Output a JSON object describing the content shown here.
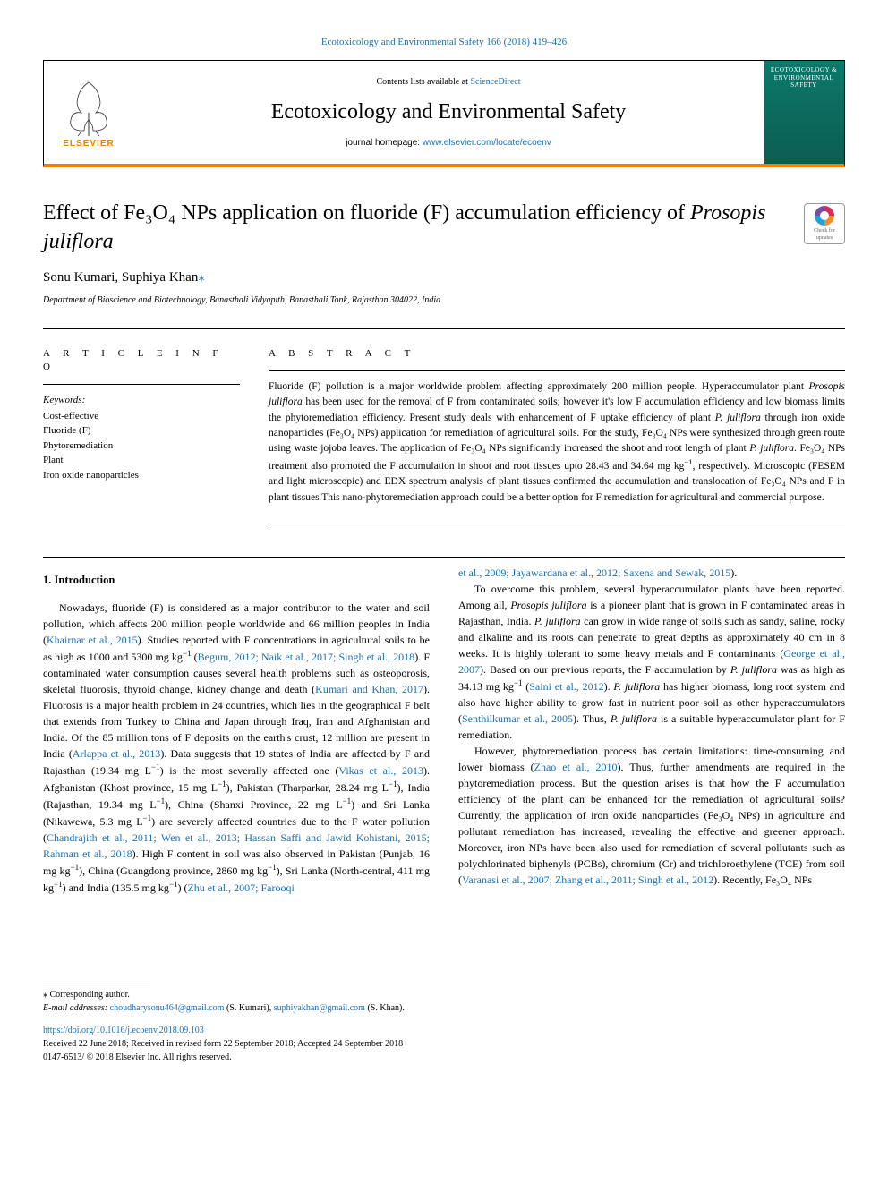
{
  "journal_ref": {
    "text": "Ecotoxicology and Environmental Safety 166 (2018) 419–426",
    "link_text": "Ecotoxicology and Environmental Safety 166 (2018) 419–426"
  },
  "header": {
    "contents_prefix": "Contents lists available at ",
    "contents_link": "ScienceDirect",
    "journal_title": "Ecotoxicology and Environmental Safety",
    "homepage_prefix": "journal homepage: ",
    "homepage_link": "www.elsevier.com/locate/ecoenv",
    "publisher": "ELSEVIER",
    "cover_text": "ECOTOXICOLOGY & ENVIRONMENTAL SAFETY"
  },
  "check_updates": {
    "line1": "Check for",
    "line2": "updates"
  },
  "article": {
    "title_html": "Effect of Fe₃O₄ NPs application on fluoride (F) accumulation efficiency of <em>Prosopis juliflora</em>",
    "authors": "Sonu Kumari, Suphiya Khan",
    "corr_symbol": "⁎",
    "affiliation": "Department of Bioscience and Biotechnology, Banasthali Vidyapith, Banasthali Tonk, Rajasthan 304022, India"
  },
  "article_info": {
    "label": "A R T I C L E  I N F O",
    "keywords_label": "Keywords:",
    "keywords": [
      "Cost-effective",
      "Fluoride (F)",
      "Phytoremediation",
      "Plant",
      "Iron oxide nanoparticles"
    ]
  },
  "abstract": {
    "label": "A B S T R A C T",
    "text_html": "Fluoride (F) pollution is a major worldwide problem affecting approximately 200 million people. Hyperaccumulator plant <em>Prosopis juliflora</em> has been used for the removal of F from contaminated soils; however it's low F accumulation efficiency and low biomass limits the phytoremediation efficiency. Present study deals with enhancement of F uptake efficiency of plant <em>P. juliflora</em> through iron oxide nanoparticles (Fe₃O₄ NPs) application for remediation of agricultural soils. For the study, Fe₃O₄ NPs were synthesized through green route using waste jojoba leaves. The application of Fe₃O₄ NPs significantly increased the shoot and root length of plant <em>P. juliflora</em>. Fe₃O₄ NPs treatment also promoted the F accumulation in shoot and root tissues upto 28.43 and 34.64 mg kg<span class=\"sup\">−1</span>, respectively. Microscopic (FESEM and light microscopic) and EDX spectrum analysis of plant tissues confirmed the accumulation and translocation of Fe₃O₄ NPs and F in plant tissues This nano-phytoremediation approach could be a better option for F remediation for agricultural and commercial purpose."
  },
  "body": {
    "section1_heading": "1. Introduction",
    "col1_html": "Nowadays, fluoride (F) is considered as a major contributor to the water and soil pollution, which affects 200 million people worldwide and 66 million peoples in India (<span class=\"cite\">Khairnar et al., 2015</span>). Studies reported with F concentrations in agricultural soils to be as high as 1000 and 5300 mg kg<span class=\"sup\">−1</span> (<span class=\"cite\">Begum, 2012; Naik et al., 2017; Singh et al., 2018</span>). F contaminated water consumption causes several health problems such as osteoporosis, skeletal fluorosis, thyroid change, kidney change and death (<span class=\"cite\">Kumari and Khan, 2017</span>). Fluorosis is a major health problem in 24 countries, which lies in the geographical F belt that extends from Turkey to China and Japan through Iraq, Iran and Afghanistan and India. Of the 85 million tons of F deposits on the earth's crust, 12 million are present in India (<span class=\"cite\">Arlappa et al., 2013</span>). Data suggests that 19 states of India are affected by F and Rajasthan (19.34 mg L<span class=\"sup\">−1</span>) is the most severally affected one (<span class=\"cite\">Vikas et al., 2013</span>). Afghanistan (Khost province, 15 mg L<span class=\"sup\">−1</span>), Pakistan (Tharparkar, 28.24 mg L<span class=\"sup\">−1</span>), India (Rajasthan, 19.34 mg L<span class=\"sup\">−1</span>), China (Shanxi Province, 22 mg L<span class=\"sup\">−1</span>) and Sri Lanka (Nikawewa, 5.3 mg L<span class=\"sup\">−1</span>) are severely affected countries due to the F water pollution (<span class=\"cite\">Chandrajith et al., 2011; Wen et al., 2013; Hassan Saffi and Jawid Kohistani, 2015; Rahman et al., 2018</span>). High F content in soil was also observed in Pakistan (Punjab, 16 mg kg<span class=\"sup\">−1</span>), China (Guangdong province, 2860 mg kg<span class=\"sup\">−1</span>), Sri Lanka (North-central, 411 mg kg<span class=\"sup\">−1</span>) and India (135.5 mg kg<span class=\"sup\">−1</span>) (<span class=\"cite\">Zhu et al., 2007; Farooqi</span>",
    "col2_top_html": "<span class=\"cite\">et al., 2009; Jayawardana et al., 2012; Saxena and Sewak, 2015</span>).",
    "col2_html": "To overcome this problem, several hyperaccumulator plants have been reported. Among all, <em>Prosopis juliflora</em> is a pioneer plant that is grown in F contaminated areas in Rajasthan, India. <em>P. juliflora</em> can grow in wide range of soils such as sandy, saline, rocky and alkaline and its roots can penetrate to great depths as approximately 40 cm in 8 weeks. It is highly tolerant to some heavy metals and F contaminants (<span class=\"cite\">George et al., 2007</span>). Based on our previous reports, the F accumulation by <em>P. juliflora</em> was as high as 34.13 mg kg<span class=\"sup\">−1</span> (<span class=\"cite\">Saini et al., 2012</span>). <em>P. juliflora</em> has higher biomass, long root system and also have higher ability to grow fast in nutrient poor soil as other hyperaccumulators (<span class=\"cite\">Senthilkumar et al., 2005</span>). Thus, <em>P. juliflora</em> is a suitable hyperaccumulator plant for F remediation.",
    "col2b_html": "However, phytoremediation process has certain limitations: time-consuming and lower biomass (<span class=\"cite\">Zhao et al., 2010</span>). Thus, further amendments are required in the phytoremediation process. But the question arises is that how the F accumulation efficiency of the plant can be enhanced for the remediation of agricultural soils? Currently, the application of iron oxide nanoparticles (Fe₃O₄ NPs) in agriculture and pollutant remediation has increased, revealing the effective and greener approach. Moreover, iron NPs have been also used for remediation of several pollutants such as polychlorinated biphenyls (PCBs), chromium (Cr) and trichloroethylene (TCE) from soil (<span class=\"cite\">Varanasi et al., 2007; Zhang et al., 2011; Singh et al., 2012</span>). Recently, Fe₃O₄ NPs"
  },
  "footnotes": {
    "corr_label": "⁎ Corresponding author.",
    "email_label": "E-mail addresses: ",
    "email1": "choudharysonu464@gmail.com",
    "email1_name": " (S. Kumari), ",
    "email2": "suphiyakhan@gmail.com",
    "email2_name": " (S. Khan).",
    "doi": "https://doi.org/10.1016/j.ecoenv.2018.09.103",
    "received": "Received 22 June 2018; Received in revised form 22 September 2018; Accepted 24 September 2018",
    "copyright": "0147-6513/ © 2018 Elsevier Inc. All rights reserved."
  },
  "colors": {
    "orange": "#e98300",
    "link": "#1a6faf",
    "cover_bg": "#0a7a6a"
  }
}
